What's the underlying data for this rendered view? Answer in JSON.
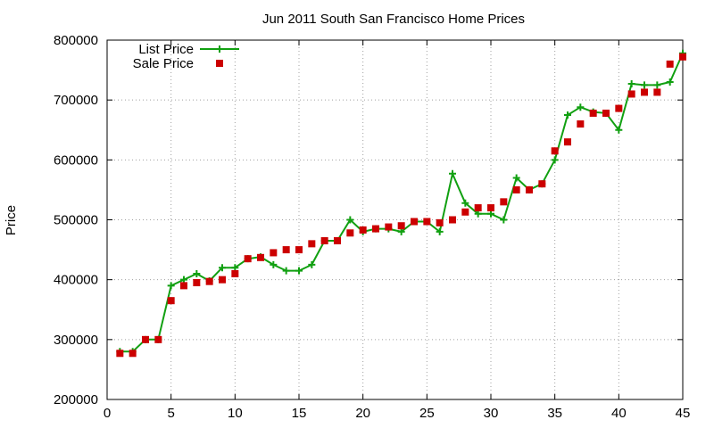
{
  "chart_data": {
    "type": "line",
    "title": "Jun 2011 South San Francisco Home Prices",
    "xlabel": "",
    "ylabel": "Price",
    "xlim": [
      0,
      45
    ],
    "ylim": [
      200000,
      800000
    ],
    "xticks": [
      "0",
      "5",
      "10",
      "15",
      "20",
      "25",
      "30",
      "35",
      "40",
      "45"
    ],
    "yticks": [
      "200000",
      "300000",
      "400000",
      "500000",
      "600000",
      "700000",
      "800000"
    ],
    "grid": true,
    "legend_position": "top-left",
    "series": [
      {
        "name": "List Price",
        "style": "line-with-plus-markers",
        "color": "#11a011",
        "x": [
          1,
          2,
          3,
          4,
          5,
          6,
          7,
          8,
          9,
          10,
          11,
          12,
          13,
          14,
          15,
          16,
          17,
          18,
          19,
          20,
          21,
          22,
          23,
          24,
          25,
          26,
          27,
          28,
          29,
          30,
          31,
          32,
          33,
          34,
          35,
          36,
          37,
          38,
          39,
          40,
          41,
          42,
          43,
          44,
          45
        ],
        "values": [
          280000,
          280000,
          300000,
          300000,
          390000,
          400000,
          410000,
          398000,
          420000,
          420000,
          435000,
          438000,
          425000,
          415000,
          415000,
          425000,
          465000,
          465000,
          500000,
          480000,
          485000,
          485000,
          480000,
          497000,
          497000,
          480000,
          577000,
          528000,
          510000,
          510000,
          500000,
          570000,
          550000,
          560000,
          600000,
          675000,
          688000,
          680000,
          678000,
          650000,
          727000,
          725000,
          725000,
          730000,
          778000
        ]
      },
      {
        "name": "Sale Price",
        "style": "square-markers",
        "color": "#cc0000",
        "x": [
          1,
          2,
          3,
          4,
          5,
          6,
          7,
          8,
          9,
          10,
          11,
          12,
          13,
          14,
          15,
          16,
          17,
          18,
          19,
          20,
          21,
          22,
          23,
          24,
          25,
          26,
          27,
          28,
          29,
          30,
          31,
          32,
          33,
          34,
          35,
          36,
          37,
          38,
          39,
          40,
          41,
          42,
          43,
          44,
          45
        ],
        "values": [
          277000,
          277000,
          300000,
          300000,
          365000,
          390000,
          395000,
          397000,
          400000,
          410000,
          435000,
          437000,
          445000,
          450000,
          450000,
          460000,
          465000,
          465000,
          478000,
          483000,
          485000,
          488000,
          490000,
          497000,
          497000,
          495000,
          500000,
          513000,
          520000,
          520000,
          530000,
          550000,
          550000,
          560000,
          615000,
          630000,
          660000,
          678000,
          678000,
          686000,
          710000,
          713000,
          713000,
          760000,
          772000
        ]
      }
    ]
  }
}
